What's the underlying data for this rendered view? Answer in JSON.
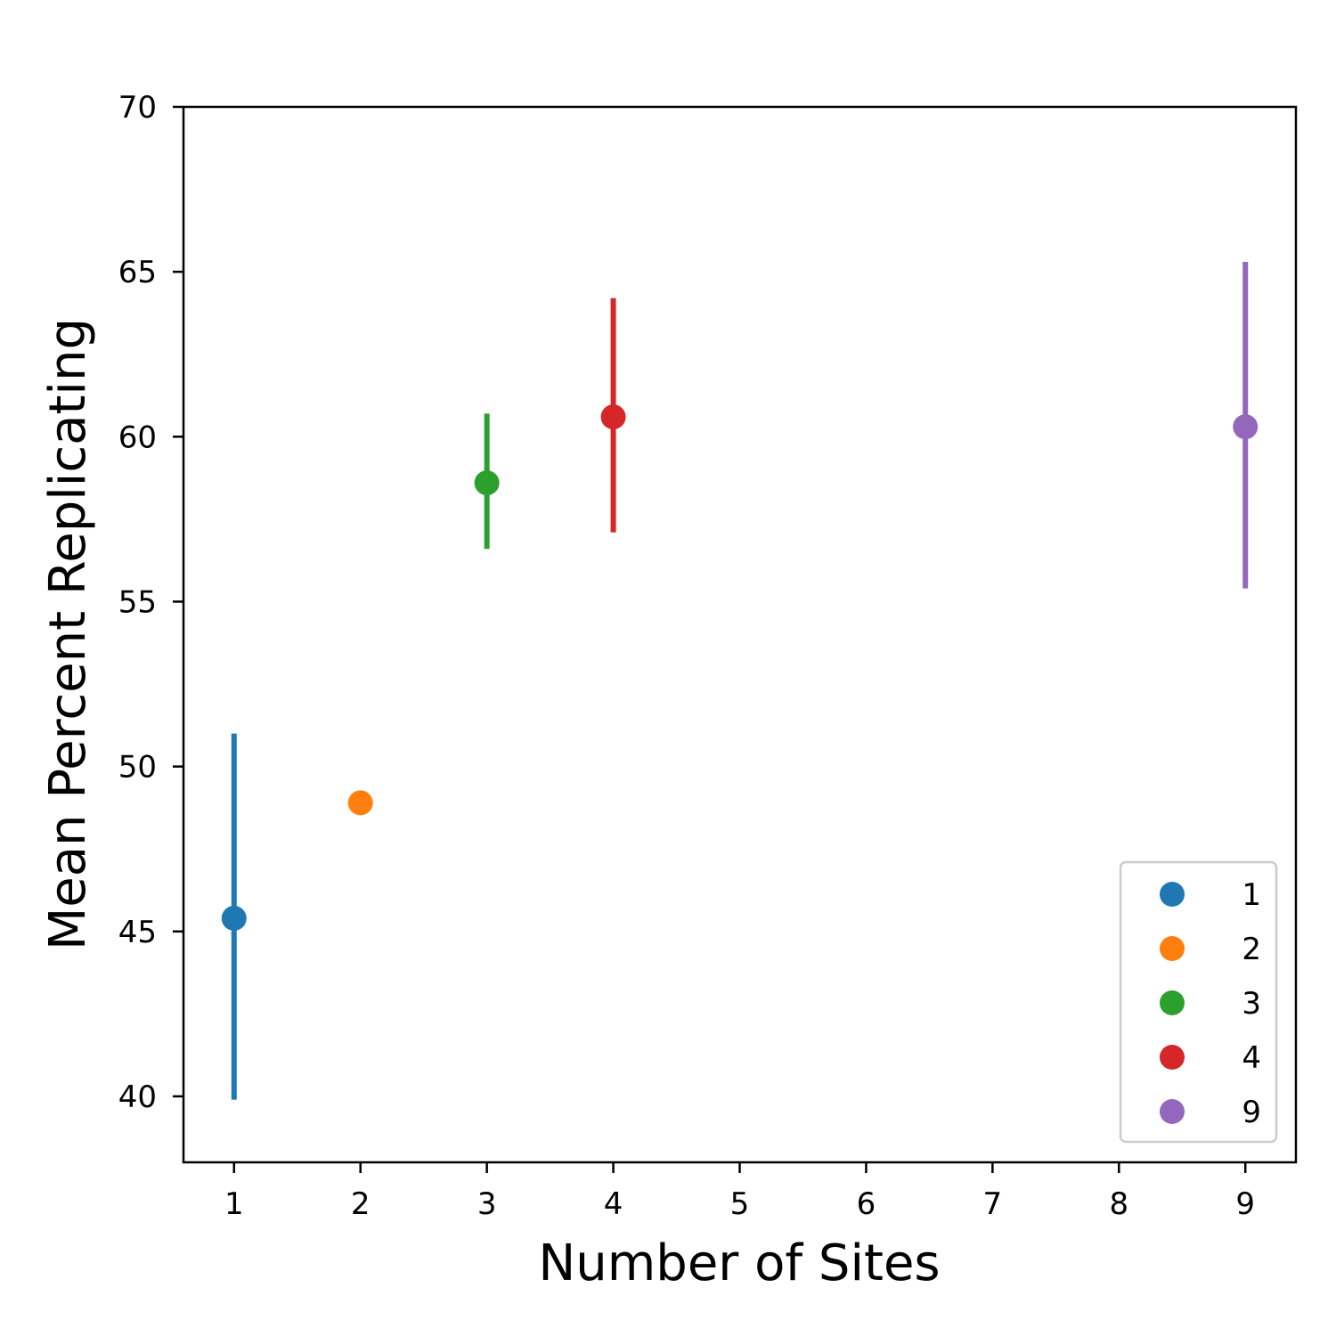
{
  "chart_data": {
    "type": "scatter",
    "xlabel": "Number of Sites",
    "ylabel": "Mean Percent Replicating",
    "xlim": [
      0.6,
      9.4
    ],
    "ylim": [
      38,
      70
    ],
    "xticks": [
      "1",
      "2",
      "3",
      "4",
      "5",
      "6",
      "7",
      "8",
      "9"
    ],
    "yticks": [
      "40",
      "45",
      "50",
      "55",
      "60",
      "65",
      "70"
    ],
    "grid": false,
    "legend_position": "lower-right",
    "series": [
      {
        "name": "1",
        "x": 1,
        "y": 45.4,
        "err_low": 39.9,
        "err_high": 51.0,
        "color": "#1f77b4"
      },
      {
        "name": "2",
        "x": 2,
        "y": 48.9,
        "err_low": null,
        "err_high": null,
        "color": "#ff7f0e"
      },
      {
        "name": "3",
        "x": 3,
        "y": 58.6,
        "err_low": 56.6,
        "err_high": 60.7,
        "color": "#2ca02c"
      },
      {
        "name": "4",
        "x": 4,
        "y": 60.6,
        "err_low": 57.1,
        "err_high": 64.2,
        "color": "#d62728"
      },
      {
        "name": "9",
        "x": 9,
        "y": 60.3,
        "err_low": 55.4,
        "err_high": 65.3,
        "color": "#9467bd"
      }
    ]
  }
}
